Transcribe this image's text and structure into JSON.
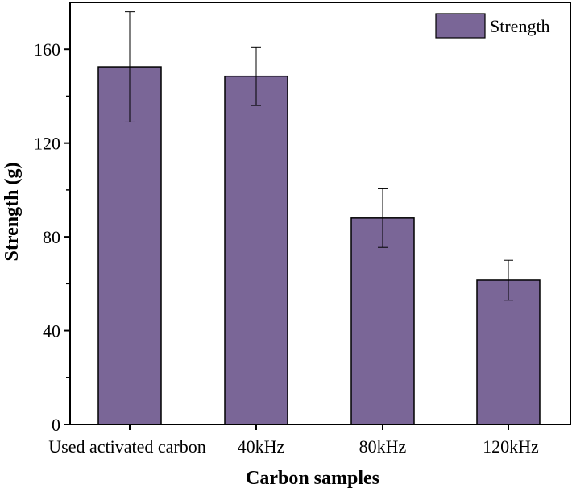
{
  "chart_data": {
    "type": "bar",
    "categories": [
      "Used activated carbon",
      "40kHz",
      "80kHz",
      "120kHz"
    ],
    "series": [
      {
        "name": "Strength",
        "values": [
          152.5,
          148.5,
          88.0,
          61.5
        ],
        "error": [
          23.5,
          12.5,
          12.5,
          8.5
        ],
        "color": "#7a6697"
      }
    ],
    "title": "",
    "xlabel": "Carbon samples",
    "ylabel": "Strength (g)",
    "ylim": [
      0,
      180
    ],
    "yticks": [
      0,
      40,
      80,
      120,
      160
    ],
    "legend_position": "top-right",
    "grid": false
  }
}
